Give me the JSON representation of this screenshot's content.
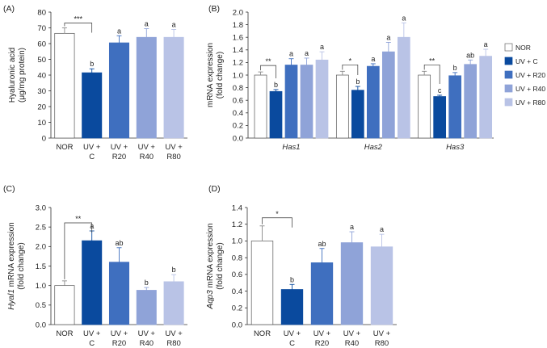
{
  "legend": {
    "items": [
      {
        "name": "NOR",
        "color": "#ffffff"
      },
      {
        "name": "UV + C",
        "color": "#0a4a9e"
      },
      {
        "name": "UV + R20",
        "color": "#3f6fbf"
      },
      {
        "name": "UV + R40",
        "color": "#8fa3d8"
      },
      {
        "name": "UV + R80",
        "color": "#b9c3e6"
      }
    ]
  },
  "chart_data": [
    {
      "panel": "(A)",
      "type": "bar",
      "ylabel_lines": [
        "Hyaluronic acid",
        "(μg/mg protein)"
      ],
      "ylim": [
        0,
        80
      ],
      "yticks": [
        0,
        10,
        20,
        30,
        40,
        50,
        60,
        70,
        80
      ],
      "categories": [
        [
          "NOR"
        ],
        [
          "UV +",
          "C"
        ],
        [
          "UV +",
          "R20"
        ],
        [
          "UV +",
          "R40"
        ],
        [
          "UV +",
          "R80"
        ]
      ],
      "values": [
        66.5,
        41.5,
        60.5,
        64,
        64
      ],
      "errors": [
        3.5,
        2.5,
        4.5,
        5.5,
        5
      ],
      "letters": [
        "",
        "b",
        "a",
        "a",
        "a"
      ],
      "significance": {
        "from": 0,
        "to": 1,
        "label": "***"
      }
    },
    {
      "panel": "(B)",
      "type": "bar",
      "ylabel_lines": [
        "mRNA expression",
        "(fold change)"
      ],
      "ylim": [
        0,
        2.0
      ],
      "yticks": [
        0,
        0.2,
        0.4,
        0.6,
        0.8,
        1.0,
        1.2,
        1.4,
        1.6,
        1.8,
        2.0
      ],
      "groups": [
        "Has1",
        "Has2",
        "Has3"
      ],
      "series": [
        {
          "name": "NOR",
          "values": [
            1.0,
            1.0,
            1.0
          ],
          "errors": [
            0.05,
            0.06,
            0.06
          ],
          "letters": [
            "",
            "",
            ""
          ]
        },
        {
          "name": "UV + C",
          "values": [
            0.74,
            0.76,
            0.66
          ],
          "errors": [
            0.03,
            0.06,
            0.02
          ],
          "letters": [
            "b",
            "b",
            "c"
          ]
        },
        {
          "name": "UV + R20",
          "values": [
            1.16,
            1.14,
            0.99
          ],
          "errors": [
            0.1,
            0.04,
            0.05
          ],
          "letters": [
            "a",
            "a",
            "b"
          ]
        },
        {
          "name": "UV + R40",
          "values": [
            1.16,
            1.37,
            1.17
          ],
          "errors": [
            0.11,
            0.15,
            0.07
          ],
          "letters": [
            "a",
            "a",
            "ab"
          ]
        },
        {
          "name": "UV + R80",
          "values": [
            1.24,
            1.6,
            1.3
          ],
          "errors": [
            0.13,
            0.23,
            0.11
          ],
          "letters": [
            "a",
            "a",
            "a"
          ]
        }
      ],
      "significance": [
        {
          "group": 0,
          "from": 0,
          "to": 1,
          "label": "**"
        },
        {
          "group": 1,
          "from": 0,
          "to": 1,
          "label": "*"
        },
        {
          "group": 2,
          "from": 0,
          "to": 1,
          "label": "**"
        }
      ]
    },
    {
      "panel": "(C)",
      "type": "bar",
      "ylabel_lines": [
        "Hyal1 mRNA expression",
        "(fold change)"
      ],
      "ylabel_italic_prefix": "Hyal1",
      "ylim": [
        0,
        3.0
      ],
      "yticks": [
        0,
        0.5,
        1.0,
        1.5,
        2.0,
        2.5,
        3.0
      ],
      "categories": [
        [
          "NOR"
        ],
        [
          "UV +",
          "C"
        ],
        [
          "UV +",
          "R20"
        ],
        [
          "UV +",
          "R40"
        ],
        [
          "UV +",
          "R80"
        ]
      ],
      "values": [
        1.0,
        2.15,
        1.6,
        0.88,
        1.1
      ],
      "errors": [
        0.12,
        0.25,
        0.37,
        0.07,
        0.18
      ],
      "letters": [
        "",
        "a",
        "ab",
        "b",
        "b"
      ],
      "significance": {
        "from": 0,
        "to": 1,
        "label": "**"
      }
    },
    {
      "panel": "(D)",
      "type": "bar",
      "ylabel_lines": [
        "Aqp3 mRNA expression",
        "(fold change)"
      ],
      "ylabel_italic_prefix": "Aqp3",
      "ylim": [
        0,
        1.4
      ],
      "yticks": [
        0,
        0.2,
        0.4,
        0.6,
        0.8,
        1.0,
        1.2,
        1.4
      ],
      "categories": [
        [
          "NOR"
        ],
        [
          "UV +",
          "C"
        ],
        [
          "UV +",
          "R20"
        ],
        [
          "UV +",
          "R40"
        ],
        [
          "UV +",
          "R80"
        ]
      ],
      "values": [
        1.0,
        0.42,
        0.74,
        0.98,
        0.93
      ],
      "errors": [
        0.18,
        0.06,
        0.17,
        0.13,
        0.15
      ],
      "letters": [
        "",
        "b",
        "ab",
        "a",
        "a"
      ],
      "significance": {
        "from": 0,
        "to": 1,
        "label": "*"
      }
    }
  ]
}
